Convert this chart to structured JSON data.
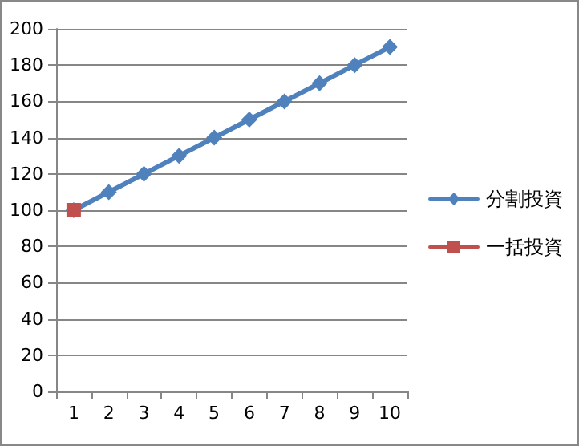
{
  "chart_data": {
    "type": "line",
    "categories": [
      "1",
      "2",
      "3",
      "4",
      "5",
      "6",
      "7",
      "8",
      "9",
      "10"
    ],
    "series": [
      {
        "name": "分割投資",
        "color": "#4f81bd",
        "marker": "diamond",
        "values": [
          100,
          110,
          120,
          130,
          140,
          150,
          160,
          170,
          180,
          190
        ]
      },
      {
        "name": "一括投資",
        "color": "#c0504d",
        "marker": "square",
        "values": [
          100,
          null,
          null,
          null,
          null,
          null,
          null,
          null,
          null,
          null
        ]
      }
    ],
    "ylim": [
      0,
      200
    ],
    "yticks": [
      0,
      20,
      40,
      60,
      80,
      100,
      120,
      140,
      160,
      180,
      200
    ],
    "grid": "y",
    "legend": "right"
  }
}
